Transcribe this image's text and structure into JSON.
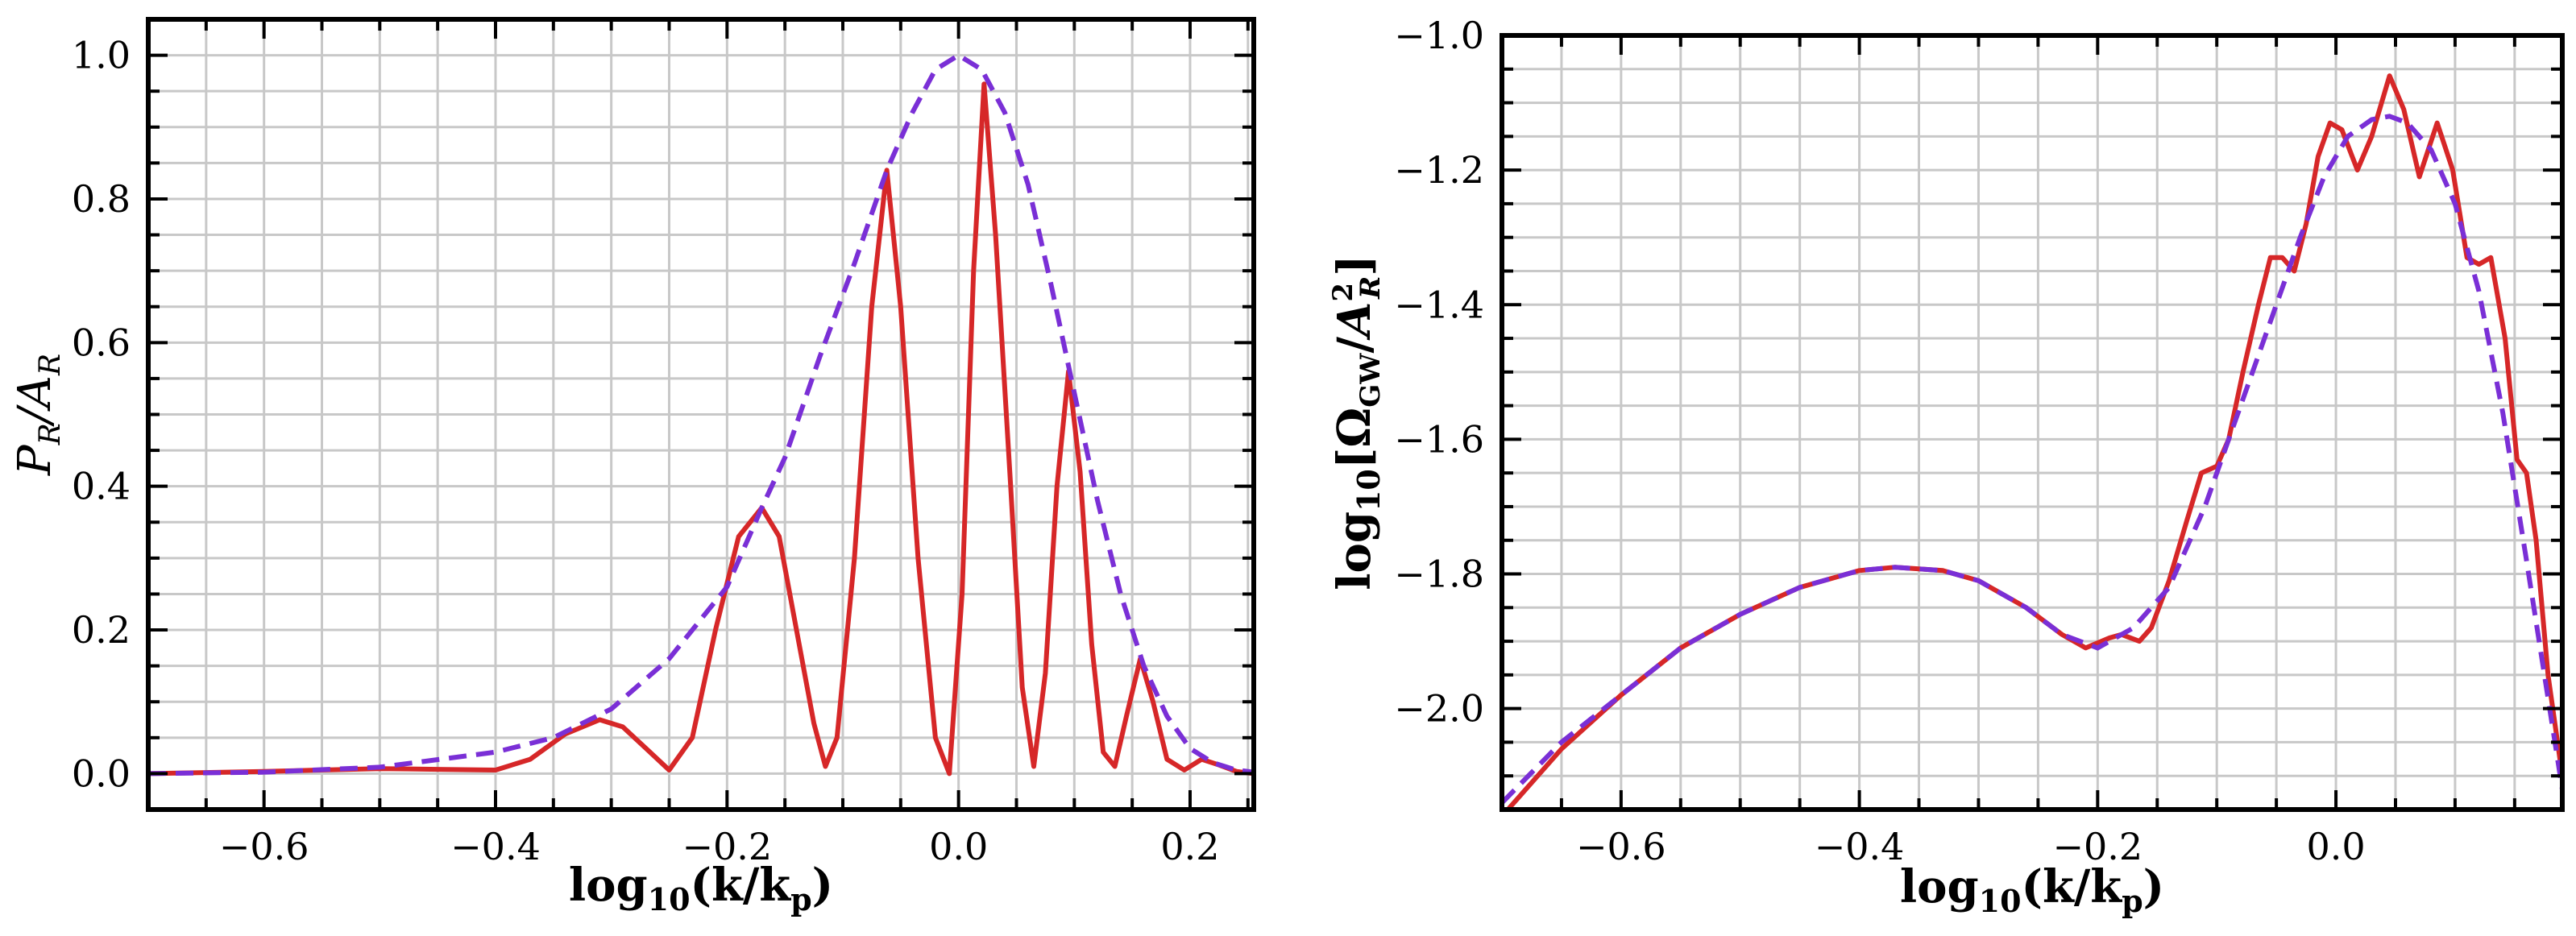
{
  "chart_data": [
    {
      "type": "line",
      "xlabel": "log10(k/kp)",
      "ylabel": "PR/AR",
      "xlim": [
        -0.7,
        0.255
      ],
      "ylim": [
        -0.05,
        1.05
      ],
      "xticks": [
        "−0.6",
        "−0.4",
        "−0.2",
        "0.0",
        "0.2"
      ],
      "xtick_values": [
        -0.6,
        -0.4,
        -0.2,
        0.0,
        0.2
      ],
      "yticks": [
        "0.0",
        "0.2",
        "0.4",
        "0.6",
        "0.8",
        "1.0"
      ],
      "ytick_values": [
        0.0,
        0.2,
        0.4,
        0.6,
        0.8,
        1.0
      ],
      "grid": true,
      "series": [
        {
          "style": "solid",
          "color": "#d62728",
          "points": [
            [
              -0.7,
              0.0
            ],
            [
              -0.6,
              0.003
            ],
            [
              -0.5,
              0.007
            ],
            [
              -0.45,
              0.006
            ],
            [
              -0.4,
              0.005
            ],
            [
              -0.37,
              0.02
            ],
            [
              -0.34,
              0.055
            ],
            [
              -0.31,
              0.075
            ],
            [
              -0.29,
              0.065
            ],
            [
              -0.27,
              0.035
            ],
            [
              -0.25,
              0.005
            ],
            [
              -0.23,
              0.05
            ],
            [
              -0.21,
              0.2
            ],
            [
              -0.19,
              0.33
            ],
            [
              -0.17,
              0.37
            ],
            [
              -0.155,
              0.33
            ],
            [
              -0.14,
              0.2
            ],
            [
              -0.125,
              0.07
            ],
            [
              -0.115,
              0.01
            ],
            [
              -0.105,
              0.05
            ],
            [
              -0.09,
              0.3
            ],
            [
              -0.075,
              0.65
            ],
            [
              -0.062,
              0.84
            ],
            [
              -0.05,
              0.65
            ],
            [
              -0.035,
              0.3
            ],
            [
              -0.02,
              0.05
            ],
            [
              -0.008,
              0.0
            ],
            [
              0.003,
              0.25
            ],
            [
              0.013,
              0.7
            ],
            [
              0.022,
              0.96
            ],
            [
              0.032,
              0.75
            ],
            [
              0.045,
              0.4
            ],
            [
              0.055,
              0.12
            ],
            [
              0.065,
              0.01
            ],
            [
              0.075,
              0.14
            ],
            [
              0.085,
              0.4
            ],
            [
              0.095,
              0.56
            ],
            [
              0.105,
              0.42
            ],
            [
              0.115,
              0.18
            ],
            [
              0.125,
              0.03
            ],
            [
              0.135,
              0.01
            ],
            [
              0.145,
              0.08
            ],
            [
              0.157,
              0.16
            ],
            [
              0.168,
              0.1
            ],
            [
              0.18,
              0.02
            ],
            [
              0.195,
              0.005
            ],
            [
              0.21,
              0.02
            ],
            [
              0.225,
              0.012
            ],
            [
              0.24,
              0.003
            ],
            [
              0.255,
              0.0
            ]
          ]
        },
        {
          "style": "dashed",
          "color": "#7a2fd6",
          "points": [
            [
              -0.7,
              0.0
            ],
            [
              -0.6,
              0.002
            ],
            [
              -0.5,
              0.009
            ],
            [
              -0.4,
              0.03
            ],
            [
              -0.35,
              0.05
            ],
            [
              -0.3,
              0.09
            ],
            [
              -0.25,
              0.16
            ],
            [
              -0.2,
              0.26
            ],
            [
              -0.17,
              0.37
            ],
            [
              -0.15,
              0.44
            ],
            [
              -0.12,
              0.58
            ],
            [
              -0.09,
              0.71
            ],
            [
              -0.062,
              0.84
            ],
            [
              -0.04,
              0.92
            ],
            [
              -0.02,
              0.98
            ],
            [
              0.0,
              1.0
            ],
            [
              0.02,
              0.98
            ],
            [
              0.04,
              0.92
            ],
            [
              0.06,
              0.82
            ],
            [
              0.08,
              0.68
            ],
            [
              0.1,
              0.53
            ],
            [
              0.12,
              0.38
            ],
            [
              0.14,
              0.25
            ],
            [
              0.16,
              0.15
            ],
            [
              0.18,
              0.08
            ],
            [
              0.2,
              0.035
            ],
            [
              0.22,
              0.015
            ],
            [
              0.24,
              0.005
            ],
            [
              0.255,
              0.002
            ]
          ]
        }
      ]
    },
    {
      "type": "line",
      "xlabel": "log10(k/kp)",
      "ylabel": "log10[ΩGW/A2R]",
      "xlim": [
        -0.7,
        0.19
      ],
      "ylim": [
        -2.15,
        -1.0
      ],
      "xticks": [
        "−0.6",
        "−0.4",
        "−0.2",
        "0.0"
      ],
      "xtick_values": [
        -0.6,
        -0.4,
        -0.2,
        0.0
      ],
      "yticks": [
        "−2.0",
        "−1.8",
        "−1.6",
        "−1.4",
        "−1.2",
        "−1.0"
      ],
      "ytick_values": [
        -2.0,
        -1.8,
        -1.6,
        -1.4,
        -1.2,
        -1.0
      ],
      "grid": true,
      "series": [
        {
          "style": "solid",
          "color": "#d62728",
          "points": [
            [
              -0.7,
              -2.16
            ],
            [
              -0.65,
              -2.06
            ],
            [
              -0.6,
              -1.98
            ],
            [
              -0.55,
              -1.91
            ],
            [
              -0.5,
              -1.86
            ],
            [
              -0.45,
              -1.82
            ],
            [
              -0.4,
              -1.795
            ],
            [
              -0.37,
              -1.79
            ],
            [
              -0.33,
              -1.795
            ],
            [
              -0.3,
              -1.81
            ],
            [
              -0.26,
              -1.85
            ],
            [
              -0.23,
              -1.89
            ],
            [
              -0.21,
              -1.91
            ],
            [
              -0.19,
              -1.895
            ],
            [
              -0.18,
              -1.89
            ],
            [
              -0.165,
              -1.9
            ],
            [
              -0.155,
              -1.88
            ],
            [
              -0.14,
              -1.81
            ],
            [
              -0.125,
              -1.72
            ],
            [
              -0.113,
              -1.65
            ],
            [
              -0.1,
              -1.64
            ],
            [
              -0.09,
              -1.6
            ],
            [
              -0.078,
              -1.5
            ],
            [
              -0.065,
              -1.4
            ],
            [
              -0.055,
              -1.33
            ],
            [
              -0.045,
              -1.33
            ],
            [
              -0.035,
              -1.35
            ],
            [
              -0.025,
              -1.28
            ],
            [
              -0.015,
              -1.18
            ],
            [
              -0.005,
              -1.13
            ],
            [
              0.005,
              -1.14
            ],
            [
              0.018,
              -1.2
            ],
            [
              0.03,
              -1.15
            ],
            [
              0.045,
              -1.06
            ],
            [
              0.057,
              -1.11
            ],
            [
              0.07,
              -1.21
            ],
            [
              0.085,
              -1.13
            ],
            [
              0.098,
              -1.2
            ],
            [
              0.11,
              -1.33
            ],
            [
              0.12,
              -1.34
            ],
            [
              0.13,
              -1.33
            ],
            [
              0.142,
              -1.45
            ],
            [
              0.152,
              -1.63
            ],
            [
              0.16,
              -1.65
            ],
            [
              0.168,
              -1.75
            ],
            [
              0.178,
              -1.95
            ],
            [
              0.19,
              -2.1
            ]
          ]
        },
        {
          "style": "dashed",
          "color": "#7a2fd6",
          "points": [
            [
              -0.7,
              -2.14
            ],
            [
              -0.65,
              -2.05
            ],
            [
              -0.6,
              -1.98
            ],
            [
              -0.55,
              -1.91
            ],
            [
              -0.5,
              -1.86
            ],
            [
              -0.45,
              -1.82
            ],
            [
              -0.4,
              -1.795
            ],
            [
              -0.37,
              -1.79
            ],
            [
              -0.33,
              -1.795
            ],
            [
              -0.3,
              -1.81
            ],
            [
              -0.26,
              -1.85
            ],
            [
              -0.23,
              -1.89
            ],
            [
              -0.2,
              -1.91
            ],
            [
              -0.17,
              -1.88
            ],
            [
              -0.14,
              -1.82
            ],
            [
              -0.11,
              -1.7
            ],
            [
              -0.08,
              -1.55
            ],
            [
              -0.05,
              -1.4
            ],
            [
              -0.03,
              -1.3
            ],
            [
              -0.01,
              -1.21
            ],
            [
              0.01,
              -1.15
            ],
            [
              0.03,
              -1.125
            ],
            [
              0.045,
              -1.12
            ],
            [
              0.06,
              -1.13
            ],
            [
              0.08,
              -1.17
            ],
            [
              0.1,
              -1.25
            ],
            [
              0.12,
              -1.38
            ],
            [
              0.14,
              -1.56
            ],
            [
              0.16,
              -1.78
            ],
            [
              0.175,
              -1.95
            ],
            [
              0.19,
              -2.12
            ]
          ]
        }
      ]
    }
  ]
}
